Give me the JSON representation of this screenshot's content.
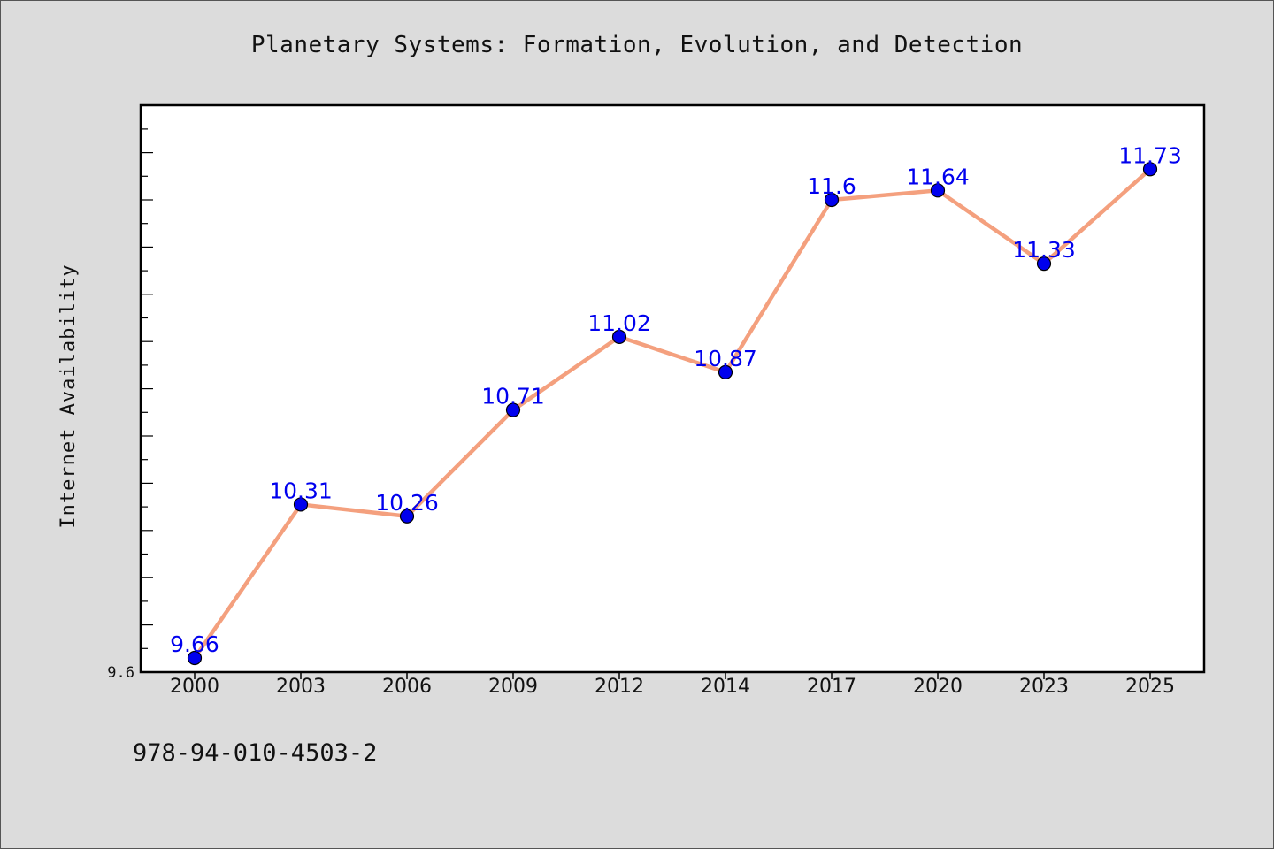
{
  "chart_data": {
    "type": "line",
    "title": "Planetary Systems: Formation, Evolution, and Detection",
    "xlabel": "",
    "ylabel": "Internet Availability",
    "categories": [
      "2000",
      "2003",
      "2006",
      "2009",
      "2012",
      "2014",
      "2017",
      "2020",
      "2023",
      "2025"
    ],
    "series": [
      {
        "values": [
          9.66,
          10.31,
          10.26,
          10.71,
          11.02,
          10.87,
          11.6,
          11.64,
          11.33,
          11.73
        ]
      }
    ],
    "data_labels": [
      "9.66",
      "10.31",
      "10.26",
      "10.71",
      "11.02",
      "10.87",
      "11.6",
      "11.64",
      "11.33",
      "11.73"
    ],
    "y_tick_label": "9.6",
    "ylim": [
      9.6,
      12.0
    ],
    "grid": false,
    "legend": "none",
    "colors": {
      "line": "#f4a07e",
      "marker": "#0000ee",
      "label": "#0000ee",
      "background": "#dcdcdc",
      "plot_background": "#ffffff"
    }
  },
  "footer": {
    "isbn": "978-94-010-4503-2"
  }
}
